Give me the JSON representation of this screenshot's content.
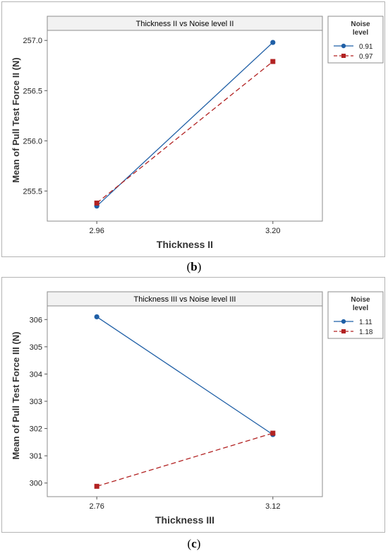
{
  "chart_data": [
    {
      "type": "line",
      "title": "Thickness II  vs  Noise level II",
      "xlabel": "Thickness II",
      "ylabel": "Mean of Pull Test Force II (N)",
      "categories": [
        "2.96",
        "3.20"
      ],
      "yticks": [
        "255.5",
        "256.0",
        "256.5",
        "257.0"
      ],
      "ylim": [
        255.2,
        257.1
      ],
      "legend_title": "Noise level",
      "legend_position": "right",
      "series": [
        {
          "name": "0.91",
          "values": [
            255.35,
            256.98
          ],
          "color": "#1f5fa6",
          "marker": "circle",
          "dash": "solid"
        },
        {
          "name": "0.97",
          "values": [
            255.38,
            256.79
          ],
          "color": "#b22222",
          "marker": "square",
          "dash": "dashed"
        }
      ],
      "panel_label": {
        "open": "(",
        "letter": "b",
        "close": ")"
      }
    },
    {
      "type": "line",
      "title": "Thickness III  vs Noise level III",
      "xlabel": "Thickness III",
      "ylabel": "Mean of Pull Test Force III (N)",
      "categories": [
        "2.76",
        "3.12"
      ],
      "yticks": [
        "300",
        "301",
        "302",
        "303",
        "304",
        "305",
        "306"
      ],
      "ylim": [
        299.5,
        306.5
      ],
      "legend_title": "Noise level",
      "legend_position": "right",
      "series": [
        {
          "name": "1.11",
          "values": [
            306.1,
            301.78
          ],
          "color": "#1f5fa6",
          "marker": "circle",
          "dash": "solid"
        },
        {
          "name": "1.18",
          "values": [
            299.88,
            301.83
          ],
          "color": "#b22222",
          "marker": "square",
          "dash": "dashed"
        }
      ],
      "panel_label": {
        "open": "(",
        "letter": "c",
        "close": ")"
      }
    }
  ]
}
